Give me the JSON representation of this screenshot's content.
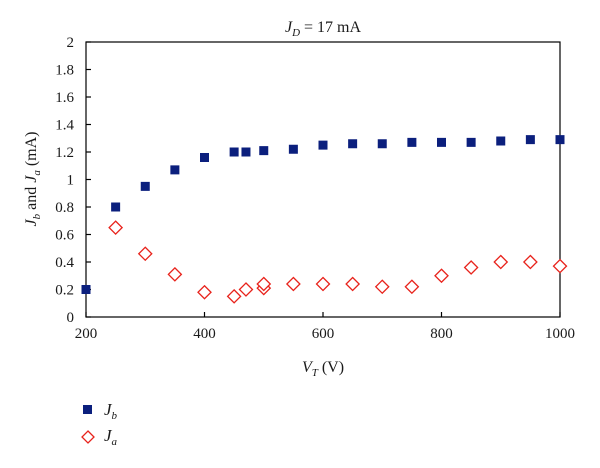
{
  "chart_data": {
    "type": "scatter",
    "title": "J_D = 17 mA",
    "title_parts": {
      "var": "J",
      "sub": "D",
      "rest": " = 17 mA"
    },
    "xlabel": "V_T (V)",
    "xlabel_parts": {
      "var": "V",
      "sub": "T",
      "rest": " (V)"
    },
    "ylabel": "J_b and J_a (mA)",
    "ylabel_parts": {
      "v1": "J",
      "s1": "b",
      "mid": " and ",
      "v2": "J",
      "s2": "a",
      "rest": " (mA)"
    },
    "xlim": [
      200,
      1000
    ],
    "ylim": [
      0,
      2
    ],
    "xticks": [
      "200",
      "400",
      "600",
      "800",
      "1000"
    ],
    "yticks": [
      "0",
      "0.2",
      "0.4",
      "0.6",
      "0.8",
      "1",
      "1.2",
      "1.4",
      "1.6",
      "1.8",
      "2"
    ],
    "grid": false,
    "legend_position": "bottom-left",
    "series": [
      {
        "name": "J_b",
        "legend_var": "J",
        "legend_sub": "b",
        "marker": "square",
        "color": "#0b1f7d",
        "points": [
          [
            200,
            0.2
          ],
          [
            250,
            0.8
          ],
          [
            300,
            0.95
          ],
          [
            350,
            1.07
          ],
          [
            400,
            1.16
          ],
          [
            450,
            1.2
          ],
          [
            470,
            1.2
          ],
          [
            500,
            1.21
          ],
          [
            550,
            1.22
          ],
          [
            600,
            1.25
          ],
          [
            650,
            1.26
          ],
          [
            700,
            1.26
          ],
          [
            750,
            1.27
          ],
          [
            800,
            1.27
          ],
          [
            850,
            1.27
          ],
          [
            900,
            1.28
          ],
          [
            950,
            1.29
          ],
          [
            1000,
            1.29
          ]
        ]
      },
      {
        "name": "J_a",
        "legend_var": "J",
        "legend_sub": "a",
        "marker": "diamond-open",
        "color": "#e8231c",
        "points": [
          [
            250,
            0.65
          ],
          [
            300,
            0.46
          ],
          [
            350,
            0.31
          ],
          [
            400,
            0.18
          ],
          [
            450,
            0.15
          ],
          [
            470,
            0.2
          ],
          [
            500,
            0.21
          ],
          [
            500,
            0.24
          ],
          [
            550,
            0.24
          ],
          [
            600,
            0.24
          ],
          [
            650,
            0.24
          ],
          [
            700,
            0.22
          ],
          [
            750,
            0.22
          ],
          [
            800,
            0.3
          ],
          [
            850,
            0.36
          ],
          [
            900,
            0.4
          ],
          [
            950,
            0.4
          ],
          [
            1000,
            0.37
          ]
        ]
      }
    ]
  }
}
